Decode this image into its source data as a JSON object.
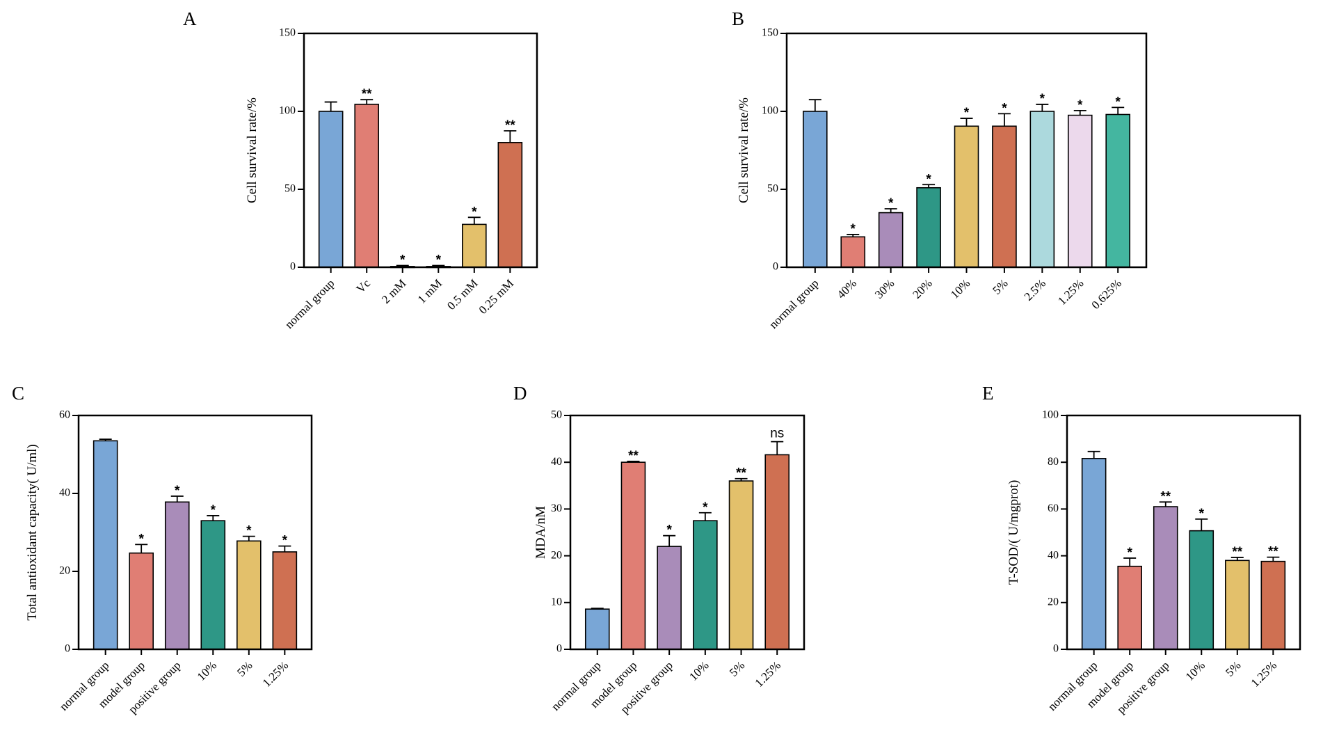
{
  "chart_data": [
    {
      "panel": "A",
      "type": "bar",
      "ylabel": "Cell survival rate/%",
      "ylim": [
        0,
        150
      ],
      "yticks": [
        0,
        50,
        100,
        150
      ],
      "categories": [
        "normal group",
        "Vc",
        "2 mM",
        "1 mM",
        "0.5 mM",
        "0.25 mM"
      ],
      "values": [
        100,
        104.5,
        0.5,
        0.5,
        27.5,
        80
      ],
      "errors": [
        6,
        3,
        0.6,
        0.6,
        4.5,
        7.5
      ],
      "significance": [
        "",
        "**",
        "*",
        "*",
        "*",
        "**"
      ],
      "colors": [
        "#79a6d6",
        "#e07e74",
        "#e07e74",
        "#e07e74",
        "#e3c06b",
        "#cf7052"
      ]
    },
    {
      "panel": "B",
      "type": "bar",
      "ylabel": "Cell survival rate/%",
      "ylim": [
        0,
        150
      ],
      "yticks": [
        0,
        50,
        100,
        150
      ],
      "categories": [
        "normal group",
        "40%",
        "30%",
        "20%",
        "10%",
        "5%",
        "2.5%",
        "1.25%",
        "0.625%"
      ],
      "values": [
        100,
        19.5,
        35,
        51,
        90.5,
        90.5,
        100,
        97.5,
        98
      ],
      "errors": [
        7.5,
        1.5,
        2.5,
        2,
        5,
        8,
        4.5,
        3,
        4.5
      ],
      "significance": [
        "",
        "*",
        "*",
        "*",
        "*",
        "*",
        "*",
        "*",
        "*"
      ],
      "colors": [
        "#79a6d6",
        "#e07e74",
        "#a98cb9",
        "#2e9786",
        "#e3c06b",
        "#cf7052",
        "#acd9dd",
        "#ecd9ec",
        "#44b6a0"
      ]
    },
    {
      "panel": "C",
      "type": "bar",
      "ylabel": "Total antioxidant capacity( U/ml)",
      "ylim": [
        0,
        60
      ],
      "yticks": [
        0,
        20,
        40,
        60
      ],
      "categories": [
        "normal group",
        "model group",
        "positive group",
        "10%",
        "5%",
        "1.25%"
      ],
      "values": [
        53.5,
        24.7,
        37.8,
        33,
        27.8,
        25
      ],
      "errors": [
        0.4,
        2.2,
        1.5,
        1.3,
        1.2,
        1.5
      ],
      "significance": [
        "",
        "*",
        "*",
        "*",
        "*",
        "*"
      ],
      "colors": [
        "#79a6d6",
        "#e07e74",
        "#a98cb9",
        "#2e9786",
        "#e3c06b",
        "#cf7052"
      ]
    },
    {
      "panel": "D",
      "type": "bar",
      "ylabel": "MDA/nM",
      "ylim": [
        0,
        50
      ],
      "yticks": [
        0,
        10,
        20,
        30,
        40,
        50
      ],
      "categories": [
        "normal group",
        "model group",
        "positive group",
        "10%",
        "5%",
        "1.25%"
      ],
      "values": [
        8.6,
        40,
        22,
        27.5,
        36,
        41.6
      ],
      "errors": [
        0.15,
        0.2,
        2.3,
        1.7,
        0.5,
        2.8
      ],
      "significance": [
        "",
        "**",
        "*",
        "*",
        "**",
        "ns"
      ],
      "colors": [
        "#79a6d6",
        "#e07e74",
        "#a98cb9",
        "#2e9786",
        "#e3c06b",
        "#cf7052"
      ]
    },
    {
      "panel": "E",
      "type": "bar",
      "ylabel": "T-SOD/( U/mgprot)",
      "ylim": [
        0,
        100
      ],
      "yticks": [
        0,
        20,
        40,
        60,
        80,
        100
      ],
      "categories": [
        "normal group",
        "model group",
        "positive group",
        "10%",
        "5%",
        "1.25%"
      ],
      "values": [
        81.6,
        35.5,
        61,
        50.7,
        38,
        37.6
      ],
      "errors": [
        3,
        3.5,
        2,
        5,
        1.3,
        1.8
      ],
      "significance": [
        "",
        "*",
        "**",
        "*",
        "**",
        "**"
      ],
      "colors": [
        "#79a6d6",
        "#e07e74",
        "#a98cb9",
        "#2e9786",
        "#e3c06b",
        "#cf7052"
      ]
    }
  ]
}
